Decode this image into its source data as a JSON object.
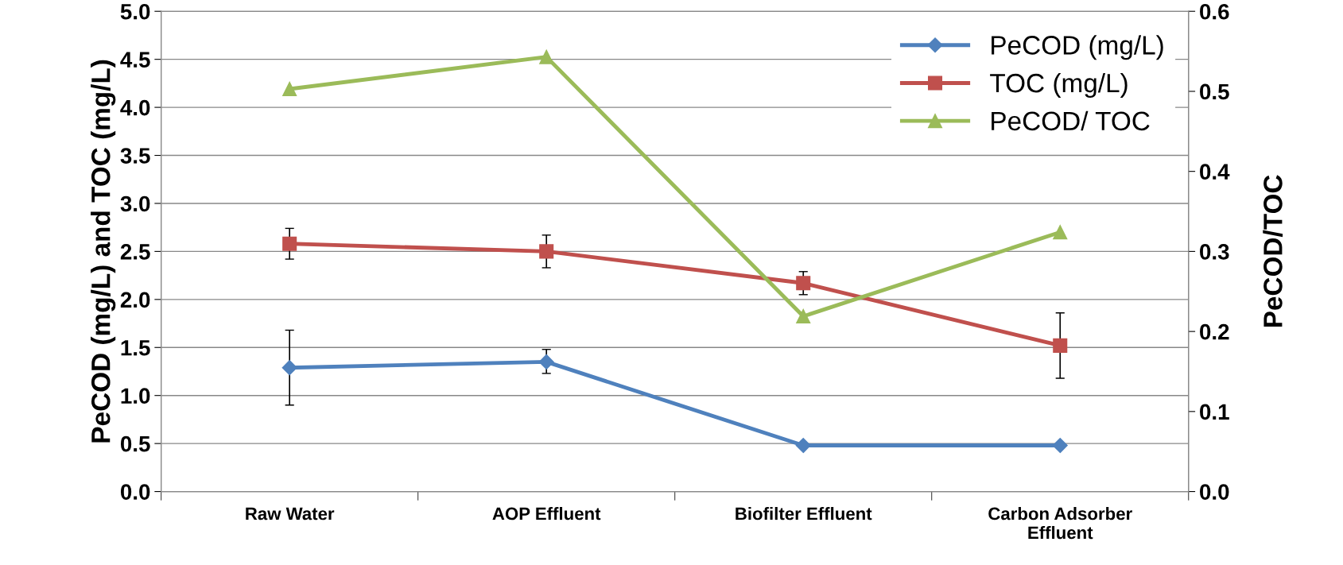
{
  "chart_data": {
    "type": "line",
    "categories": [
      "Raw Water",
      "AOP Effluent",
      "Biofilter Effluent",
      "Carbon Adsorber\nEffluent"
    ],
    "ylabel": "PeCOD (mg/L) and TOC (mg/L)",
    "y2label": "PeCOD/TOC",
    "ylim": [
      0,
      5
    ],
    "yticks": [
      {
        "value": 0,
        "label": "0.0"
      },
      0.5,
      {
        "value": 1,
        "label": "1.0"
      },
      1.5,
      {
        "value": 2,
        "label": "2.0"
      },
      2.5,
      {
        "value": 3,
        "label": "3.0"
      },
      3.5,
      {
        "value": 4,
        "label": "4.0"
      },
      4.5,
      {
        "value": 5,
        "label": "5.0"
      }
    ],
    "y2lim": [
      0,
      0.6
    ],
    "y2ticks": [
      {
        "value": 0,
        "label": "0.0"
      },
      0.1,
      0.2,
      0.3,
      0.4,
      0.5,
      0.6
    ],
    "grid": "y",
    "legend": "top right",
    "series": [
      {
        "name": "PeCOD (mg/L)",
        "color": "#4f81bd",
        "marker": "diamond",
        "values": [
          1.29,
          1.35,
          0.48,
          0.48
        ],
        "errors": [
          [
            0.9,
            1.68
          ],
          [
            1.23,
            1.48
          ],
          null,
          null
        ]
      },
      {
        "name": "TOC (mg/L)",
        "color": "#c0504d",
        "marker": "square",
        "values": [
          2.58,
          2.5,
          2.17,
          1.52
        ],
        "errors": [
          [
            2.42,
            2.74
          ],
          [
            2.33,
            2.67
          ],
          [
            2.05,
            2.29
          ],
          [
            1.18,
            1.86
          ]
        ]
      },
      {
        "name": "PeCOD/ TOC",
        "color": "#9bbb59",
        "marker": "triangle",
        "axis": "y2",
        "values": [
          0.503,
          0.543,
          0.219,
          0.324
        ]
      }
    ]
  }
}
